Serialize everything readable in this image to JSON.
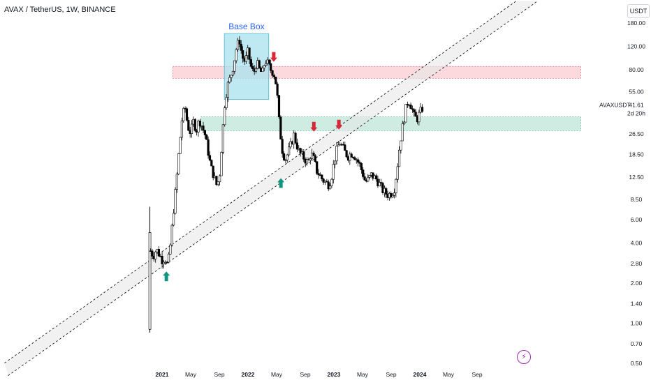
{
  "header": {
    "title": "AVAX / TetherUS, 1W, BINANCE"
  },
  "currency": "USDT",
  "icons": {
    "flash": "lightning-bolt-icon"
  },
  "colors": {
    "up": "#ffffff",
    "down": "#000000",
    "resistance_zone": "#f8b9c0",
    "support_zone": "#a6dcc8",
    "base_box": "#a8e2ef",
    "base_box_label": "#2962ff",
    "arrow_up": "#11957e",
    "arrow_down": "#d62839",
    "channel": "#000000"
  },
  "chart_data": {
    "type": "candlestick",
    "symbol": "AVAXUSDT",
    "scale": "log",
    "ylim": [
      0.5,
      180
    ],
    "y_ticks": [
      180,
      120,
      80,
      55,
      26.5,
      18.5,
      12.5,
      8.5,
      6,
      4,
      2.8,
      2,
      1.4,
      1,
      0.7,
      0.5
    ],
    "y_tick_labels": [
      "180.00",
      "120.00",
      "80.00",
      "55.00",
      "26.50",
      "18.50",
      "12.50",
      "8.50",
      "6.00",
      "4.00",
      "2.80",
      "2.00",
      "1.40",
      "1.00",
      "0.70",
      "0.50"
    ],
    "x_tick_labels": [
      "2021",
      "May",
      "Sep",
      "2022",
      "May",
      "Sep",
      "2023",
      "May",
      "Sep",
      "2024",
      "May",
      "Sep"
    ],
    "x_tick_months": [
      0,
      4,
      8,
      12,
      16,
      20,
      24,
      28,
      32,
      36,
      40,
      44
    ],
    "x_start_month_offset": -2,
    "current_price": "41.61",
    "countdown": "2d 20h",
    "close_path": [
      [
        -1.6,
        3.5
      ],
      [
        -1.2,
        3.2
      ],
      [
        -0.8,
        3.6
      ],
      [
        -0.4,
        3.3
      ],
      [
        0,
        3.0
      ],
      [
        0.4,
        3.1
      ],
      [
        0.8,
        2.7
      ],
      [
        1.2,
        4.0
      ],
      [
        1.6,
        7.0
      ],
      [
        2.0,
        11.5
      ],
      [
        2.4,
        21
      ],
      [
        2.8,
        35
      ],
      [
        3.2,
        42
      ],
      [
        3.6,
        30
      ],
      [
        4.0,
        27
      ],
      [
        4.4,
        33
      ],
      [
        4.8,
        28
      ],
      [
        5.2,
        34
      ],
      [
        5.6,
        30
      ],
      [
        6.0,
        26
      ],
      [
        6.4,
        20
      ],
      [
        6.8,
        15
      ],
      [
        7.2,
        13
      ],
      [
        7.6,
        11
      ],
      [
        8.0,
        12
      ],
      [
        8.4,
        25
      ],
      [
        8.8,
        48
      ],
      [
        9.2,
        62
      ],
      [
        9.6,
        72
      ],
      [
        10.0,
        88
      ],
      [
        10.4,
        118
      ],
      [
        10.8,
        135
      ],
      [
        11.2,
        100
      ],
      [
        11.6,
        92
      ],
      [
        12.0,
        110
      ],
      [
        12.4,
        85
      ],
      [
        12.8,
        75
      ],
      [
        13.2,
        92
      ],
      [
        13.6,
        80
      ],
      [
        14.0,
        75
      ],
      [
        14.4,
        95
      ],
      [
        14.8,
        88
      ],
      [
        15.2,
        80
      ],
      [
        15.6,
        76
      ],
      [
        16.0,
        60
      ],
      [
        16.4,
        30
      ],
      [
        16.8,
        20
      ],
      [
        17.2,
        17
      ],
      [
        17.6,
        19
      ],
      [
        18.0,
        22
      ],
      [
        18.4,
        26
      ],
      [
        18.8,
        22
      ],
      [
        19.2,
        19
      ],
      [
        19.6,
        18
      ],
      [
        20.0,
        17
      ],
      [
        20.4,
        16
      ],
      [
        20.8,
        19
      ],
      [
        21.2,
        17
      ],
      [
        21.6,
        14
      ],
      [
        22.0,
        13
      ],
      [
        22.4,
        12
      ],
      [
        22.8,
        11.5
      ],
      [
        23.2,
        11
      ],
      [
        23.6,
        12
      ],
      [
        24.0,
        16
      ],
      [
        24.4,
        20
      ],
      [
        24.8,
        23
      ],
      [
        25.2,
        21
      ],
      [
        25.6,
        19
      ],
      [
        26.0,
        18
      ],
      [
        26.4,
        19
      ],
      [
        26.8,
        18.5
      ],
      [
        27.2,
        17
      ],
      [
        27.6,
        15.5
      ],
      [
        28.0,
        13.5
      ],
      [
        28.4,
        11.5
      ],
      [
        28.8,
        12
      ],
      [
        29.2,
        13
      ],
      [
        29.6,
        12.5
      ],
      [
        30.0,
        12
      ],
      [
        30.4,
        11
      ],
      [
        30.8,
        10
      ],
      [
        31.2,
        9.5
      ],
      [
        31.6,
        9.2
      ],
      [
        32.0,
        9.5
      ],
      [
        32.4,
        10
      ],
      [
        32.8,
        14
      ],
      [
        33.2,
        22
      ],
      [
        33.6,
        30
      ],
      [
        34.0,
        40
      ],
      [
        34.4,
        48
      ],
      [
        34.8,
        43
      ],
      [
        35.2,
        36
      ],
      [
        35.6,
        34
      ],
      [
        36.0,
        38
      ],
      [
        36.4,
        41.61
      ]
    ],
    "zones": [
      {
        "name": "resistance",
        "low": 69,
        "high": 85
      },
      {
        "name": "support",
        "low": 28,
        "high": 35.5
      }
    ],
    "base_box": {
      "label": "Base Box",
      "month_from": 8.7,
      "month_to": 14.9,
      "low": 48,
      "high": 150
    },
    "channel": {
      "p1": [
        0.6,
        2.8
      ],
      "p2": [
        33.5,
        50
      ],
      "offset_factor": 1.3
    },
    "arrows": [
      {
        "dir": "up",
        "month": 0.6,
        "price": 2.45
      },
      {
        "dir": "up",
        "month": 16.6,
        "price": 12.3
      },
      {
        "dir": "down",
        "month": 15.6,
        "price": 92
      },
      {
        "dir": "down",
        "month": 21.2,
        "price": 27.5
      },
      {
        "dir": "down",
        "month": 24.7,
        "price": 28.5
      }
    ]
  }
}
